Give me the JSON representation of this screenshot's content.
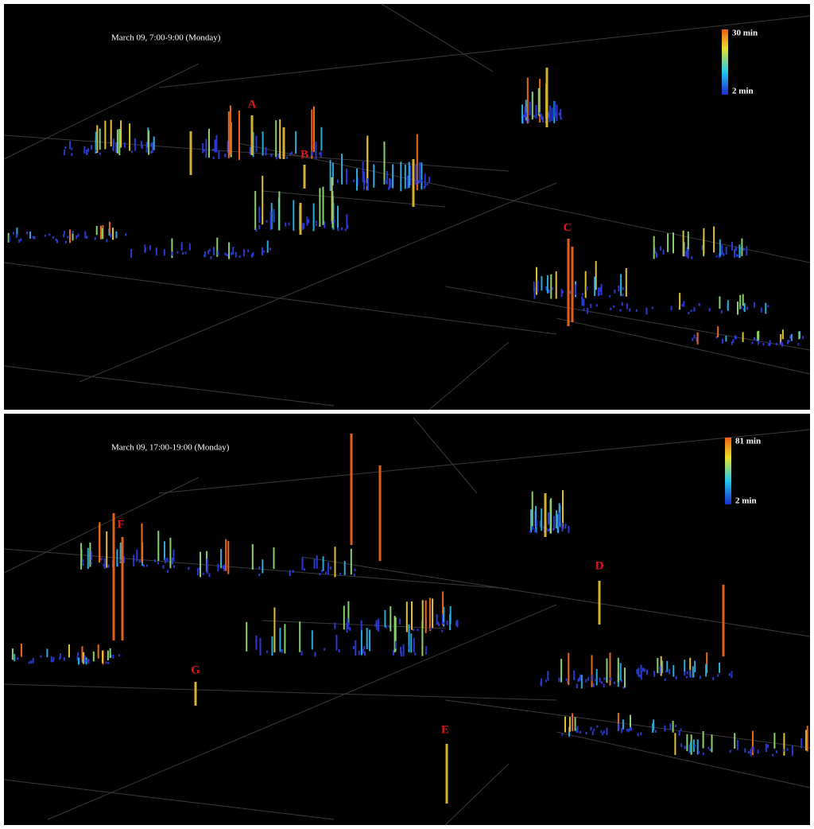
{
  "panels": [
    {
      "title": "March 09, 7:00-9:00 (Monday)",
      "legend": {
        "max": "30 min",
        "min": "2 min"
      },
      "markers": [
        "A",
        "B",
        "C"
      ]
    },
    {
      "title": "March 09, 17:00-19:00 (Monday)",
      "legend": {
        "max": "81 min",
        "min": "2 min"
      },
      "markers": [
        "D",
        "E",
        "F",
        "G"
      ]
    }
  ]
}
